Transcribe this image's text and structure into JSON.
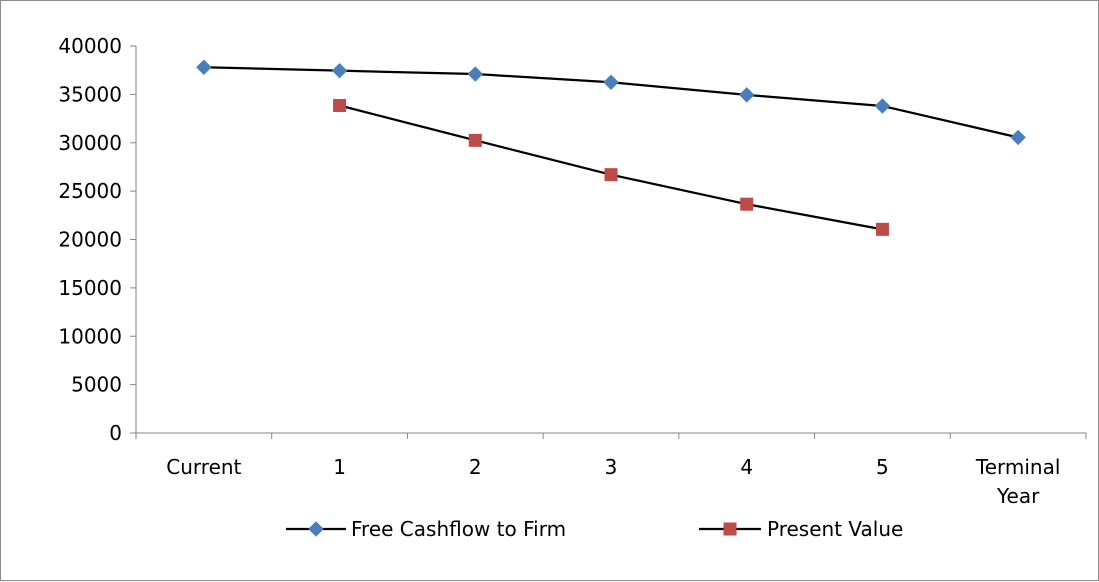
{
  "chart_data": {
    "type": "line",
    "title": "",
    "xlabel": "",
    "ylabel": "",
    "categories": [
      [
        "Current"
      ],
      [
        "1"
      ],
      [
        "2"
      ],
      [
        "3"
      ],
      [
        "4"
      ],
      [
        "5"
      ],
      [
        "Terminal",
        "Year"
      ]
    ],
    "yticks": [
      0,
      5000,
      10000,
      15000,
      20000,
      25000,
      30000,
      35000,
      40000
    ],
    "ylim": [
      0,
      40000
    ],
    "grid": false,
    "legend_position": "bottom",
    "series": [
      {
        "name": "Free Cashflow to Firm",
        "color": "#4a7ebb",
        "marker": "diamond",
        "values": [
          37800,
          37450,
          37100,
          36250,
          34950,
          33800,
          30550
        ]
      },
      {
        "name": "Present Value",
        "color": "#be4b48",
        "marker": "square",
        "values": [
          null,
          33850,
          30250,
          26700,
          23650,
          21050,
          null
        ]
      }
    ]
  }
}
